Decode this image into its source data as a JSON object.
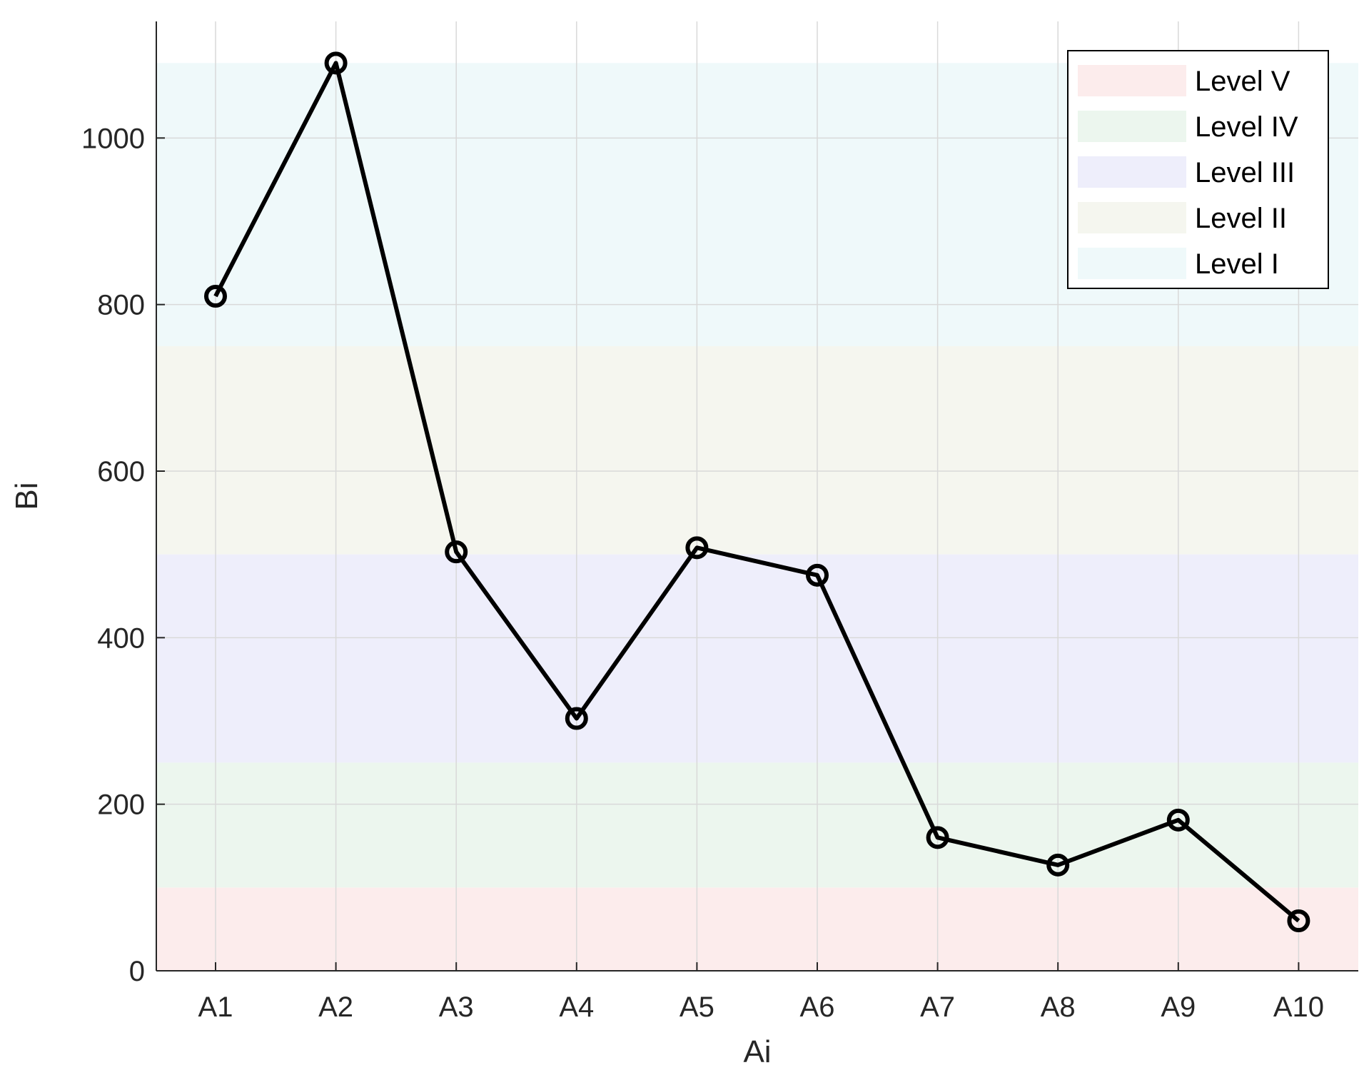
{
  "chart_data": {
    "type": "line",
    "title": "",
    "xlabel": "Ai",
    "ylabel": "Bi",
    "categories": [
      "A1",
      "A2",
      "A3",
      "A4",
      "A5",
      "A6",
      "A7",
      "A8",
      "A9",
      "A10"
    ],
    "series": [
      {
        "values": [
          810,
          1090,
          503,
          303,
          508,
          475,
          160,
          127,
          181,
          60
        ],
        "color": "#000000",
        "marker": "circle"
      }
    ],
    "ylim": [
      0,
      1140
    ],
    "yticks": [
      0,
      200,
      400,
      600,
      800,
      1000
    ],
    "grid": true,
    "bands": [
      {
        "name": "Level V",
        "from": 0,
        "to": 100,
        "color": "#fcecec"
      },
      {
        "name": "Level IV",
        "from": 100,
        "to": 250,
        "color": "#ecf6ee"
      },
      {
        "name": "Level III",
        "from": 250,
        "to": 500,
        "color": "#eeeefb"
      },
      {
        "name": "Level II",
        "from": 500,
        "to": 750,
        "color": "#f5f6ef"
      },
      {
        "name": "Level I",
        "from": 750,
        "to": 1090,
        "color": "#eff9fa"
      }
    ],
    "legend": {
      "position": "top-right",
      "entries": [
        "Level V",
        "Level IV",
        "Level III",
        "Level II",
        "Level I"
      ]
    }
  }
}
